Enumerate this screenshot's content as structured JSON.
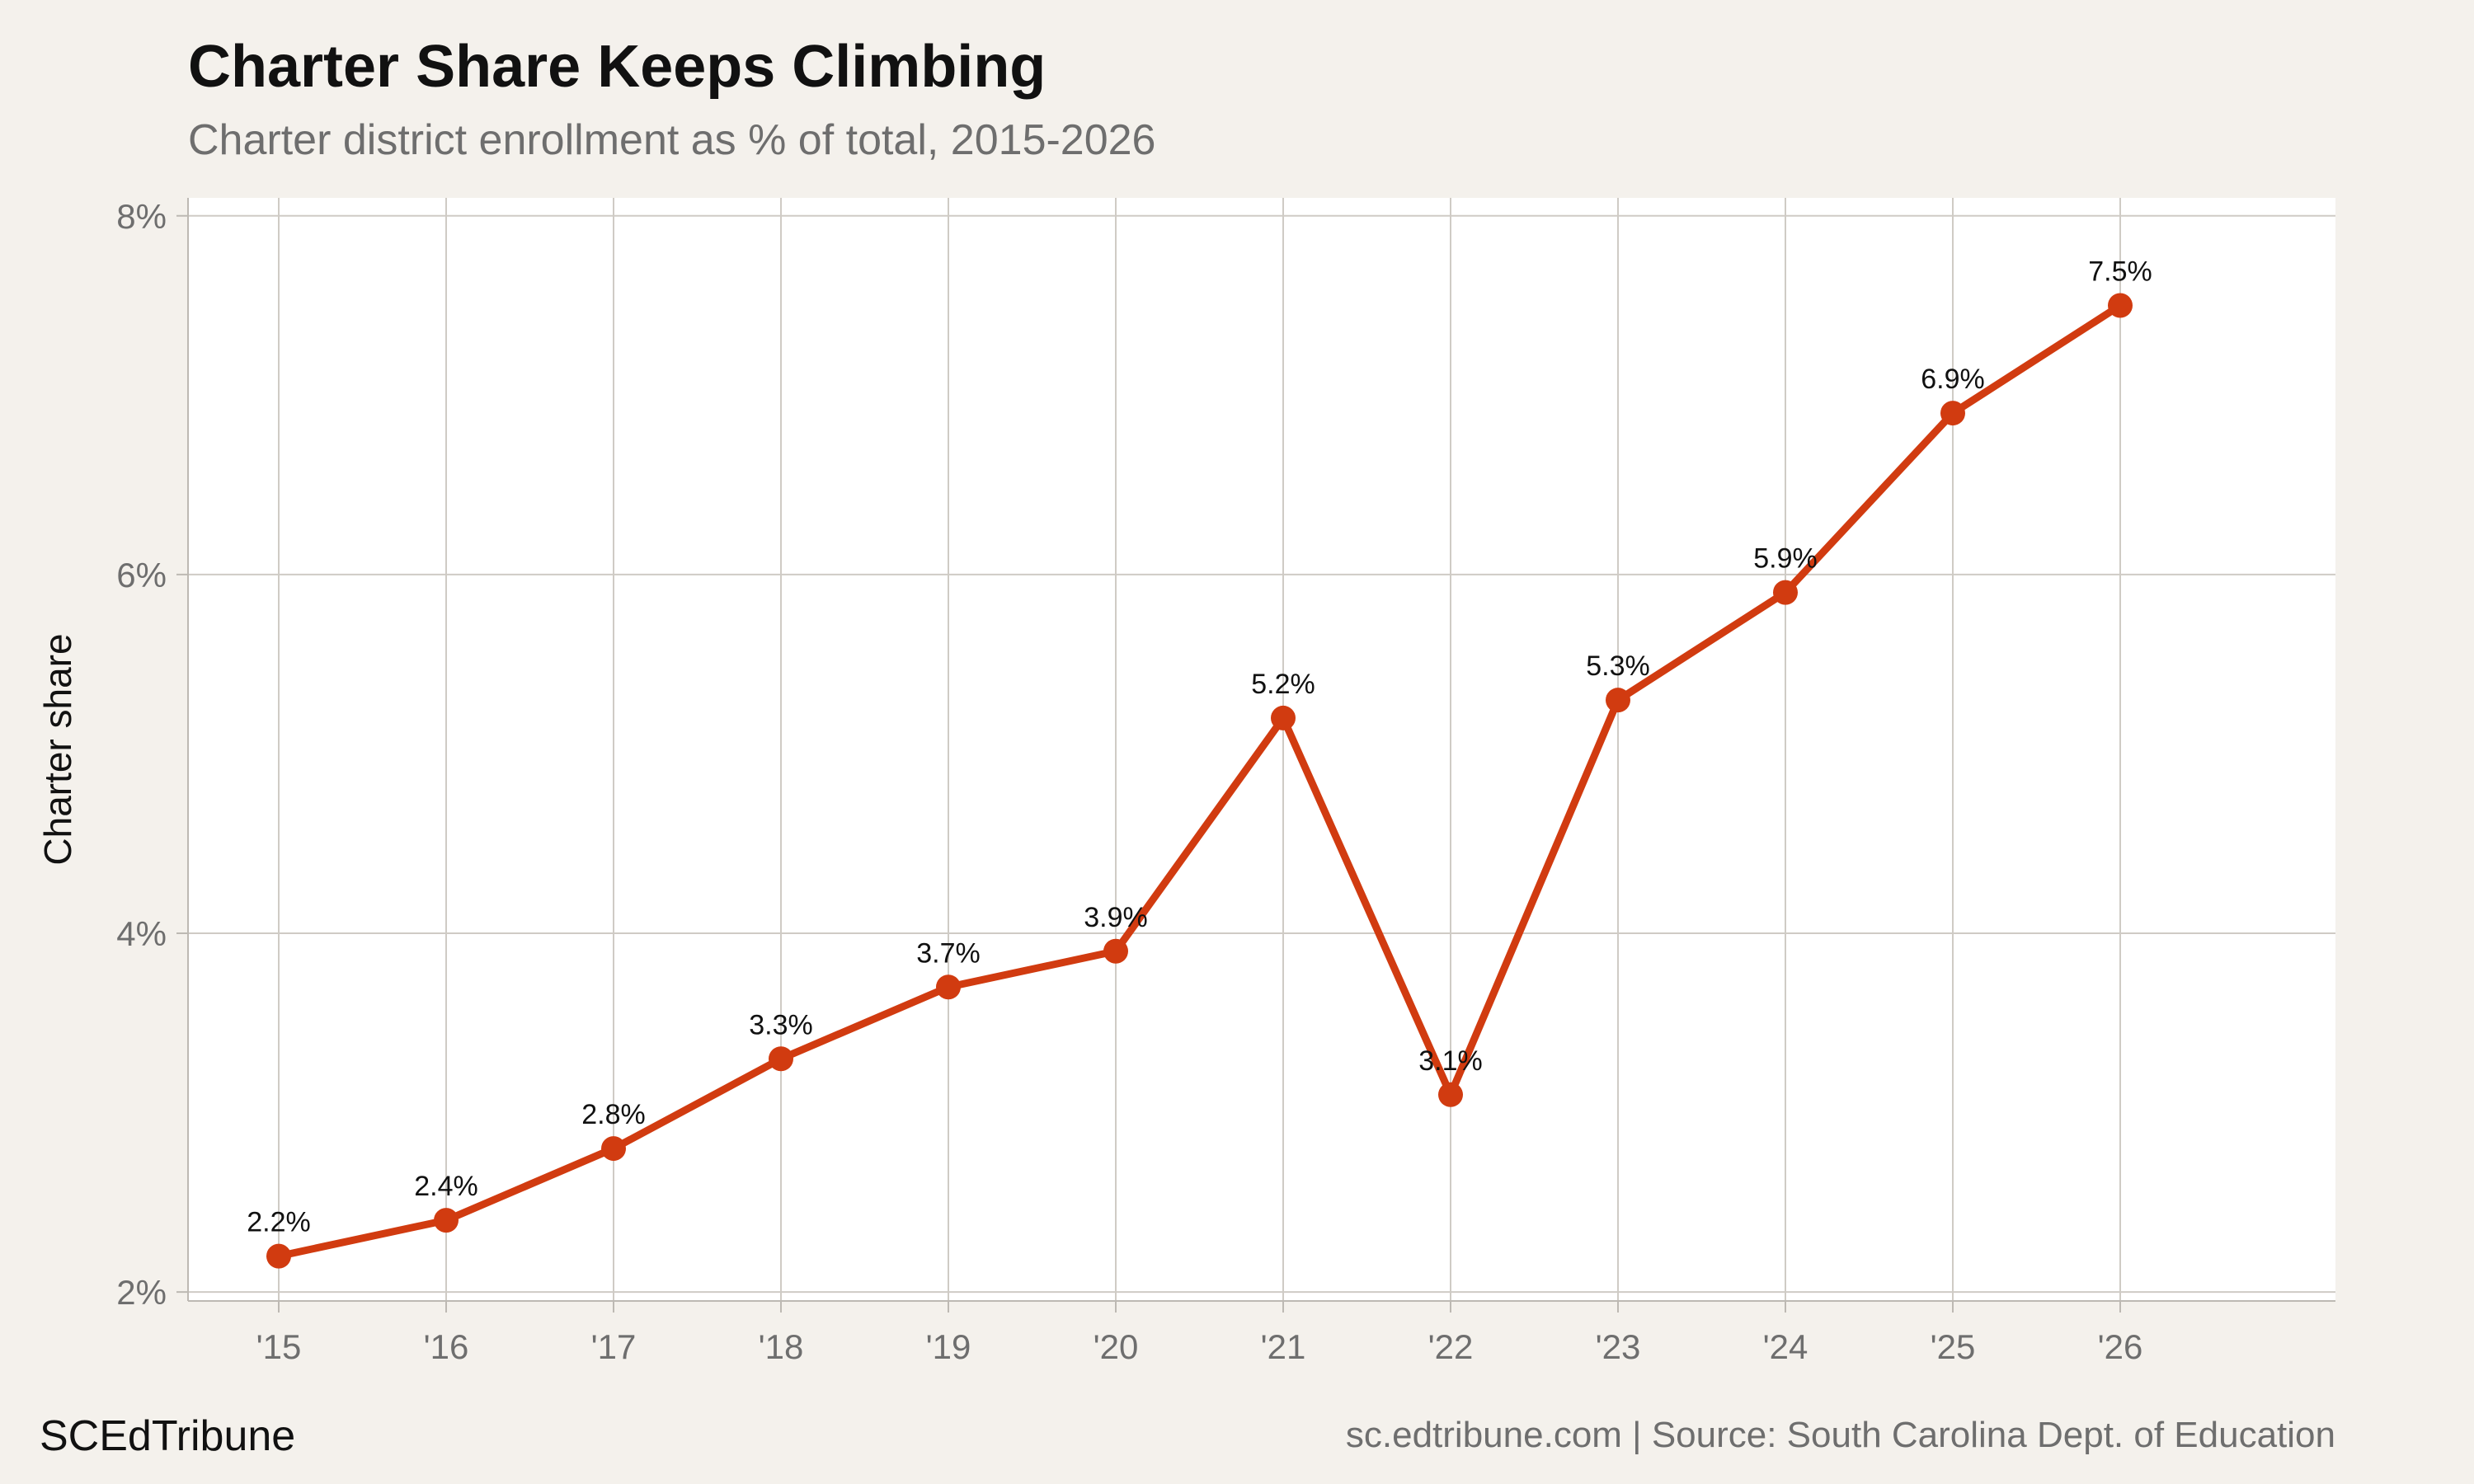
{
  "header": {
    "title": "Charter Share Keeps Climbing",
    "subtitle": "Charter district enrollment as % of total, 2015-2026"
  },
  "footer": {
    "brand": "SCEdTribune",
    "source": "sc.edtribune.com | Source: South Carolina Dept. of Education"
  },
  "colors": {
    "background": "#f4f1ec",
    "panel": "#ffffff",
    "grid": "#cfcbc5",
    "line": "#d13b10"
  },
  "chart_data": {
    "type": "line",
    "title": "Charter Share Keeps Climbing",
    "subtitle": "Charter district enrollment as % of total, 2015-2026",
    "xlabel": "",
    "ylabel": "Charter share",
    "categories": [
      "'15",
      "'16",
      "'17",
      "'18",
      "'19",
      "'20",
      "'21",
      "'22",
      "'23",
      "'24",
      "'25",
      "'26"
    ],
    "series": [
      {
        "name": "Charter share",
        "values": [
          2.2,
          2.4,
          2.8,
          3.3,
          3.7,
          3.9,
          5.2,
          3.1,
          5.3,
          5.9,
          6.9,
          7.5
        ],
        "labels": [
          "2.2%",
          "2.4%",
          "2.8%",
          "3.3%",
          "3.7%",
          "3.9%",
          "5.2%",
          "3.1%",
          "5.3%",
          "5.9%",
          "6.9%",
          "7.5%"
        ]
      }
    ],
    "ylim": [
      1.95,
      8.1
    ],
    "yticks": [
      2,
      4,
      6,
      8
    ],
    "ytick_labels": [
      "2%",
      "4%",
      "6%",
      "8%"
    ],
    "grid": true,
    "legend": "none"
  }
}
